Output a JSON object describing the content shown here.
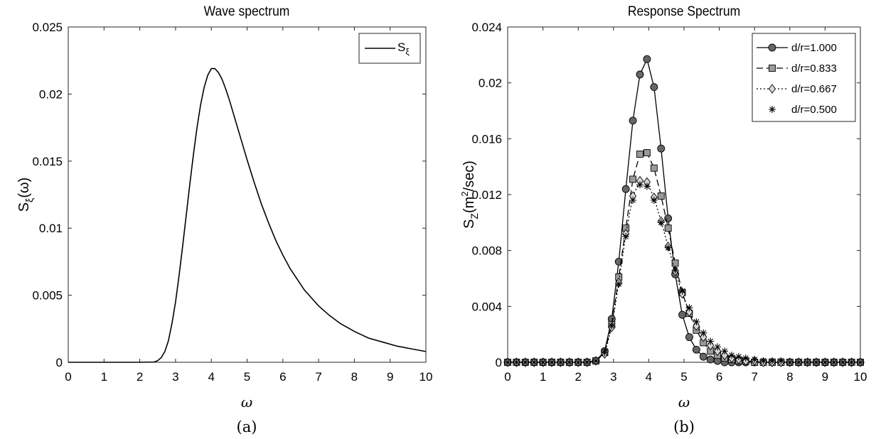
{
  "chart_data": [
    {
      "type": "line",
      "panel_label": "(a)",
      "title": "Wave spectrum",
      "xlabel": "ω",
      "ylabel_base": "S",
      "ylabel_sub": "ξ",
      "ylabel_suffix": "(ω)",
      "xlim": [
        0,
        10
      ],
      "ylim": [
        0,
        0.025
      ],
      "xticks": [
        "0",
        "1",
        "2",
        "3",
        "4",
        "5",
        "6",
        "7",
        "8",
        "9",
        "10"
      ],
      "xtick_values": [
        0,
        1,
        2,
        3,
        4,
        5,
        6,
        7,
        8,
        9,
        10
      ],
      "yticks": [
        "0",
        "0.005",
        "0.01",
        "0.015",
        "0.02",
        "0.025"
      ],
      "ytick_values": [
        0,
        0.005,
        0.01,
        0.015,
        0.02,
        0.025
      ],
      "legend_position": "top-right",
      "series": [
        {
          "name": "S",
          "name_sub": "ξ",
          "color": "#000000",
          "x": [
            0,
            1,
            2,
            2.4,
            2.5,
            2.6,
            2.7,
            2.8,
            2.9,
            3.0,
            3.1,
            3.2,
            3.3,
            3.4,
            3.5,
            3.6,
            3.7,
            3.8,
            3.9,
            4.0,
            4.1,
            4.2,
            4.3,
            4.4,
            4.5,
            4.6,
            4.8,
            5.0,
            5.2,
            5.4,
            5.6,
            5.8,
            6.0,
            6.2,
            6.4,
            6.6,
            6.8,
            7.0,
            7.3,
            7.6,
            8.0,
            8.4,
            8.8,
            9.2,
            9.6,
            10.0
          ],
          "values": [
            0,
            0,
            0,
            2e-05,
            0.00012,
            0.00035,
            0.0008,
            0.0016,
            0.0029,
            0.0045,
            0.0065,
            0.0087,
            0.011,
            0.0133,
            0.0155,
            0.0175,
            0.0192,
            0.0205,
            0.0214,
            0.0219,
            0.0219,
            0.0216,
            0.0211,
            0.0204,
            0.0196,
            0.0187,
            0.0169,
            0.0151,
            0.0134,
            0.0118,
            0.0104,
            0.0091,
            0.008,
            0.007,
            0.0062,
            0.0054,
            0.0048,
            0.0042,
            0.0035,
            0.0029,
            0.0023,
            0.0018,
            0.0015,
            0.0012,
            0.001,
            0.0008
          ]
        }
      ]
    },
    {
      "type": "line",
      "panel_label": "(b)",
      "title": "Response Spectrum",
      "xlabel": "ω",
      "ylabel_base": "S",
      "ylabel_sub": "Z",
      "ylabel_mid": "(m",
      "ylabel_sup": "2",
      "ylabel_suffix": "/sec)",
      "xlim": [
        0,
        10
      ],
      "ylim": [
        0,
        0.024
      ],
      "xticks": [
        "0",
        "1",
        "2",
        "3",
        "4",
        "5",
        "6",
        "7",
        "8",
        "9",
        "10"
      ],
      "xtick_values": [
        0,
        1,
        2,
        3,
        4,
        5,
        6,
        7,
        8,
        9,
        10
      ],
      "yticks": [
        "0",
        "0.004",
        "0.008",
        "0.012",
        "0.016",
        "0.02",
        "0.024"
      ],
      "ytick_values": [
        0,
        0.004,
        0.008,
        0.012,
        0.016,
        0.02,
        0.024
      ],
      "legend_position": "top-right",
      "x": [
        0,
        0.25,
        0.5,
        0.75,
        1.0,
        1.25,
        1.5,
        1.75,
        2.0,
        2.25,
        2.5,
        2.75,
        2.95,
        3.15,
        3.35,
        3.55,
        3.75,
        3.95,
        4.15,
        4.35,
        4.55,
        4.75,
        4.95,
        5.15,
        5.35,
        5.55,
        5.75,
        5.95,
        6.15,
        6.35,
        6.55,
        6.75,
        7.0,
        7.25,
        7.5,
        7.75,
        8.0,
        8.25,
        8.5,
        8.75,
        9.0,
        9.25,
        9.5,
        9.75,
        10.0
      ],
      "series": [
        {
          "name": "d/r=1.000",
          "color": "#000000",
          "marker": "circle",
          "marker_fill": "#666666",
          "dash": "solid",
          "values": [
            0,
            0,
            0,
            0,
            0,
            0,
            0,
            0,
            0,
            0,
            0.0001,
            0.0008,
            0.0031,
            0.0072,
            0.0124,
            0.0173,
            0.0206,
            0.0217,
            0.0197,
            0.0153,
            0.0103,
            0.0063,
            0.0034,
            0.0018,
            0.0009,
            0.0004,
            0.0002,
            0.0001,
            0,
            0,
            0,
            0,
            0,
            0,
            0,
            0,
            0,
            0,
            0,
            0,
            0,
            0,
            0,
            0,
            0
          ]
        },
        {
          "name": "d/r=0.833",
          "color": "#000000",
          "marker": "square",
          "marker_fill": "#999999",
          "dash": "dashed",
          "values": [
            0,
            0,
            0,
            0,
            0,
            0,
            0,
            0,
            0,
            0,
            0.0001,
            0.0007,
            0.0027,
            0.0061,
            0.0096,
            0.0131,
            0.0149,
            0.015,
            0.0139,
            0.0119,
            0.0096,
            0.0071,
            0.005,
            0.0035,
            0.0023,
            0.0014,
            0.0008,
            0.0005,
            0.0003,
            0.0002,
            0.0001,
            0.0001,
            0,
            0,
            0,
            0,
            0,
            0,
            0,
            0,
            0,
            0,
            0,
            0,
            0
          ]
        },
        {
          "name": "d/r=0.667",
          "color": "#000000",
          "marker": "diamond",
          "marker_fill": "#d9d9d9",
          "dash": "dotted",
          "values": [
            0,
            0,
            0,
            0,
            0,
            0,
            0,
            0,
            0,
            0,
            0.0001,
            0.0006,
            0.0025,
            0.0057,
            0.0092,
            0.0119,
            0.013,
            0.0129,
            0.0118,
            0.0101,
            0.0083,
            0.0065,
            0.0049,
            0.0036,
            0.0026,
            0.0018,
            0.0012,
            0.0008,
            0.0005,
            0.0003,
            0.0002,
            0.0001,
            0.0001,
            0,
            0,
            0,
            0,
            0,
            0,
            0,
            0,
            0,
            0,
            0,
            0
          ]
        },
        {
          "name": "d/r=0.500",
          "color": "#000000",
          "marker": "asterisk",
          "marker_fill": "none",
          "dash": "none",
          "values": [
            0,
            0,
            0,
            0,
            0,
            0,
            0,
            0,
            0,
            0,
            0.0001,
            0.0007,
            0.0026,
            0.0056,
            0.009,
            0.0116,
            0.0127,
            0.0126,
            0.0116,
            0.01,
            0.0082,
            0.0066,
            0.0051,
            0.0039,
            0.0029,
            0.0021,
            0.0015,
            0.0011,
            0.0008,
            0.0005,
            0.0004,
            0.0003,
            0.0002,
            0.0001,
            0.0001,
            0.0001,
            0,
            0,
            0,
            0,
            0,
            0,
            0,
            0,
            0
          ]
        }
      ]
    }
  ]
}
